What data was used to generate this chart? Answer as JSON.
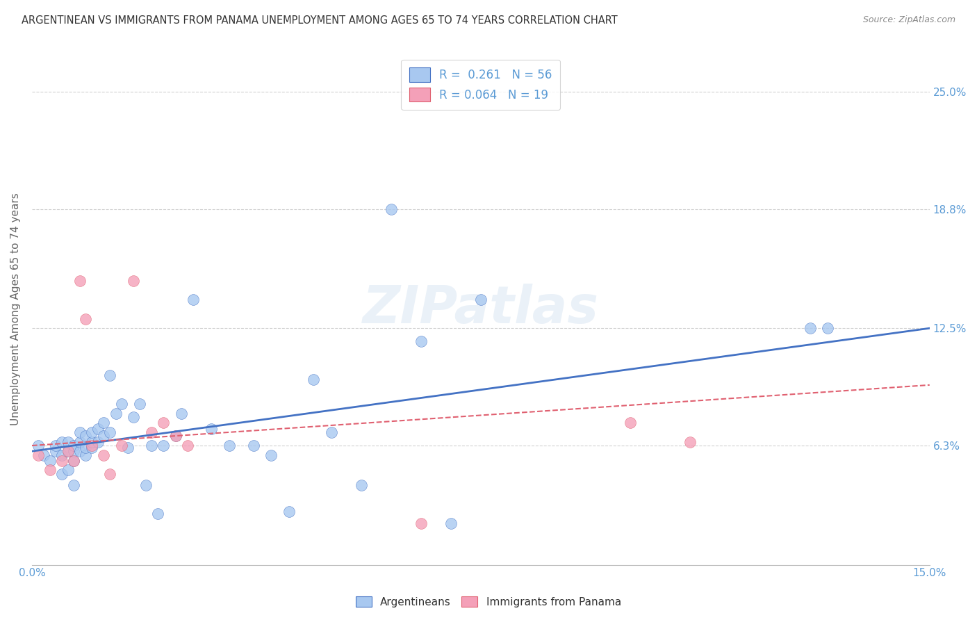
{
  "title": "ARGENTINEAN VS IMMIGRANTS FROM PANAMA UNEMPLOYMENT AMONG AGES 65 TO 74 YEARS CORRELATION CHART",
  "source": "Source: ZipAtlas.com",
  "ylabel": "Unemployment Among Ages 65 to 74 years",
  "xlim": [
    0.0,
    0.15
  ],
  "ylim": [
    0.0,
    0.27
  ],
  "xtick_labels": [
    "0.0%",
    "",
    "",
    "",
    "",
    "",
    "",
    "",
    "",
    "",
    "15.0%"
  ],
  "xtick_positions": [
    0.0,
    0.015,
    0.03,
    0.045,
    0.06,
    0.075,
    0.09,
    0.105,
    0.12,
    0.135,
    0.15
  ],
  "ytick_positions": [
    0.063,
    0.125,
    0.188,
    0.25
  ],
  "right_ytick_labels": [
    "6.3%",
    "12.5%",
    "18.8%",
    "25.0%"
  ],
  "legend_r1": "R =  0.261",
  "legend_n1": "N = 56",
  "legend_r2": "R = 0.064",
  "legend_n2": "N = 19",
  "color_blue": "#A8C8F0",
  "color_pink": "#F4A0B8",
  "color_line_blue": "#4472C4",
  "color_line_pink": "#E06070",
  "color_text_blue": "#5B9BD5",
  "watermark": "ZIPatlas",
  "argentineans_x": [
    0.001,
    0.002,
    0.003,
    0.004,
    0.004,
    0.005,
    0.005,
    0.005,
    0.006,
    0.006,
    0.006,
    0.007,
    0.007,
    0.007,
    0.007,
    0.008,
    0.008,
    0.008,
    0.009,
    0.009,
    0.009,
    0.01,
    0.01,
    0.01,
    0.011,
    0.011,
    0.012,
    0.012,
    0.013,
    0.013,
    0.014,
    0.015,
    0.016,
    0.017,
    0.018,
    0.019,
    0.02,
    0.021,
    0.022,
    0.024,
    0.025,
    0.027,
    0.03,
    0.033,
    0.037,
    0.04,
    0.043,
    0.047,
    0.05,
    0.055,
    0.06,
    0.065,
    0.07,
    0.075,
    0.13,
    0.133
  ],
  "argentineans_y": [
    0.063,
    0.058,
    0.055,
    0.06,
    0.063,
    0.048,
    0.058,
    0.065,
    0.05,
    0.06,
    0.065,
    0.042,
    0.055,
    0.06,
    0.063,
    0.06,
    0.065,
    0.07,
    0.058,
    0.062,
    0.068,
    0.062,
    0.065,
    0.07,
    0.065,
    0.072,
    0.068,
    0.075,
    0.07,
    0.1,
    0.08,
    0.085,
    0.062,
    0.078,
    0.085,
    0.042,
    0.063,
    0.027,
    0.063,
    0.068,
    0.08,
    0.14,
    0.072,
    0.063,
    0.063,
    0.058,
    0.028,
    0.098,
    0.07,
    0.042,
    0.188,
    0.118,
    0.022,
    0.14,
    0.125,
    0.125
  ],
  "panama_x": [
    0.001,
    0.003,
    0.005,
    0.006,
    0.007,
    0.008,
    0.009,
    0.01,
    0.012,
    0.013,
    0.015,
    0.017,
    0.02,
    0.022,
    0.024,
    0.026,
    0.065,
    0.1,
    0.11
  ],
  "panama_y": [
    0.058,
    0.05,
    0.055,
    0.06,
    0.055,
    0.15,
    0.13,
    0.063,
    0.058,
    0.048,
    0.063,
    0.15,
    0.07,
    0.075,
    0.068,
    0.063,
    0.022,
    0.075,
    0.065
  ],
  "blue_line_x": [
    0.0,
    0.15
  ],
  "blue_line_y": [
    0.06,
    0.125
  ],
  "pink_line_x": [
    0.0,
    0.15
  ],
  "pink_line_y": [
    0.063,
    0.095
  ],
  "background_color": "#FFFFFF",
  "grid_color": "#CCCCCC",
  "figsize": [
    14.06,
    8.92
  ],
  "dpi": 100
}
